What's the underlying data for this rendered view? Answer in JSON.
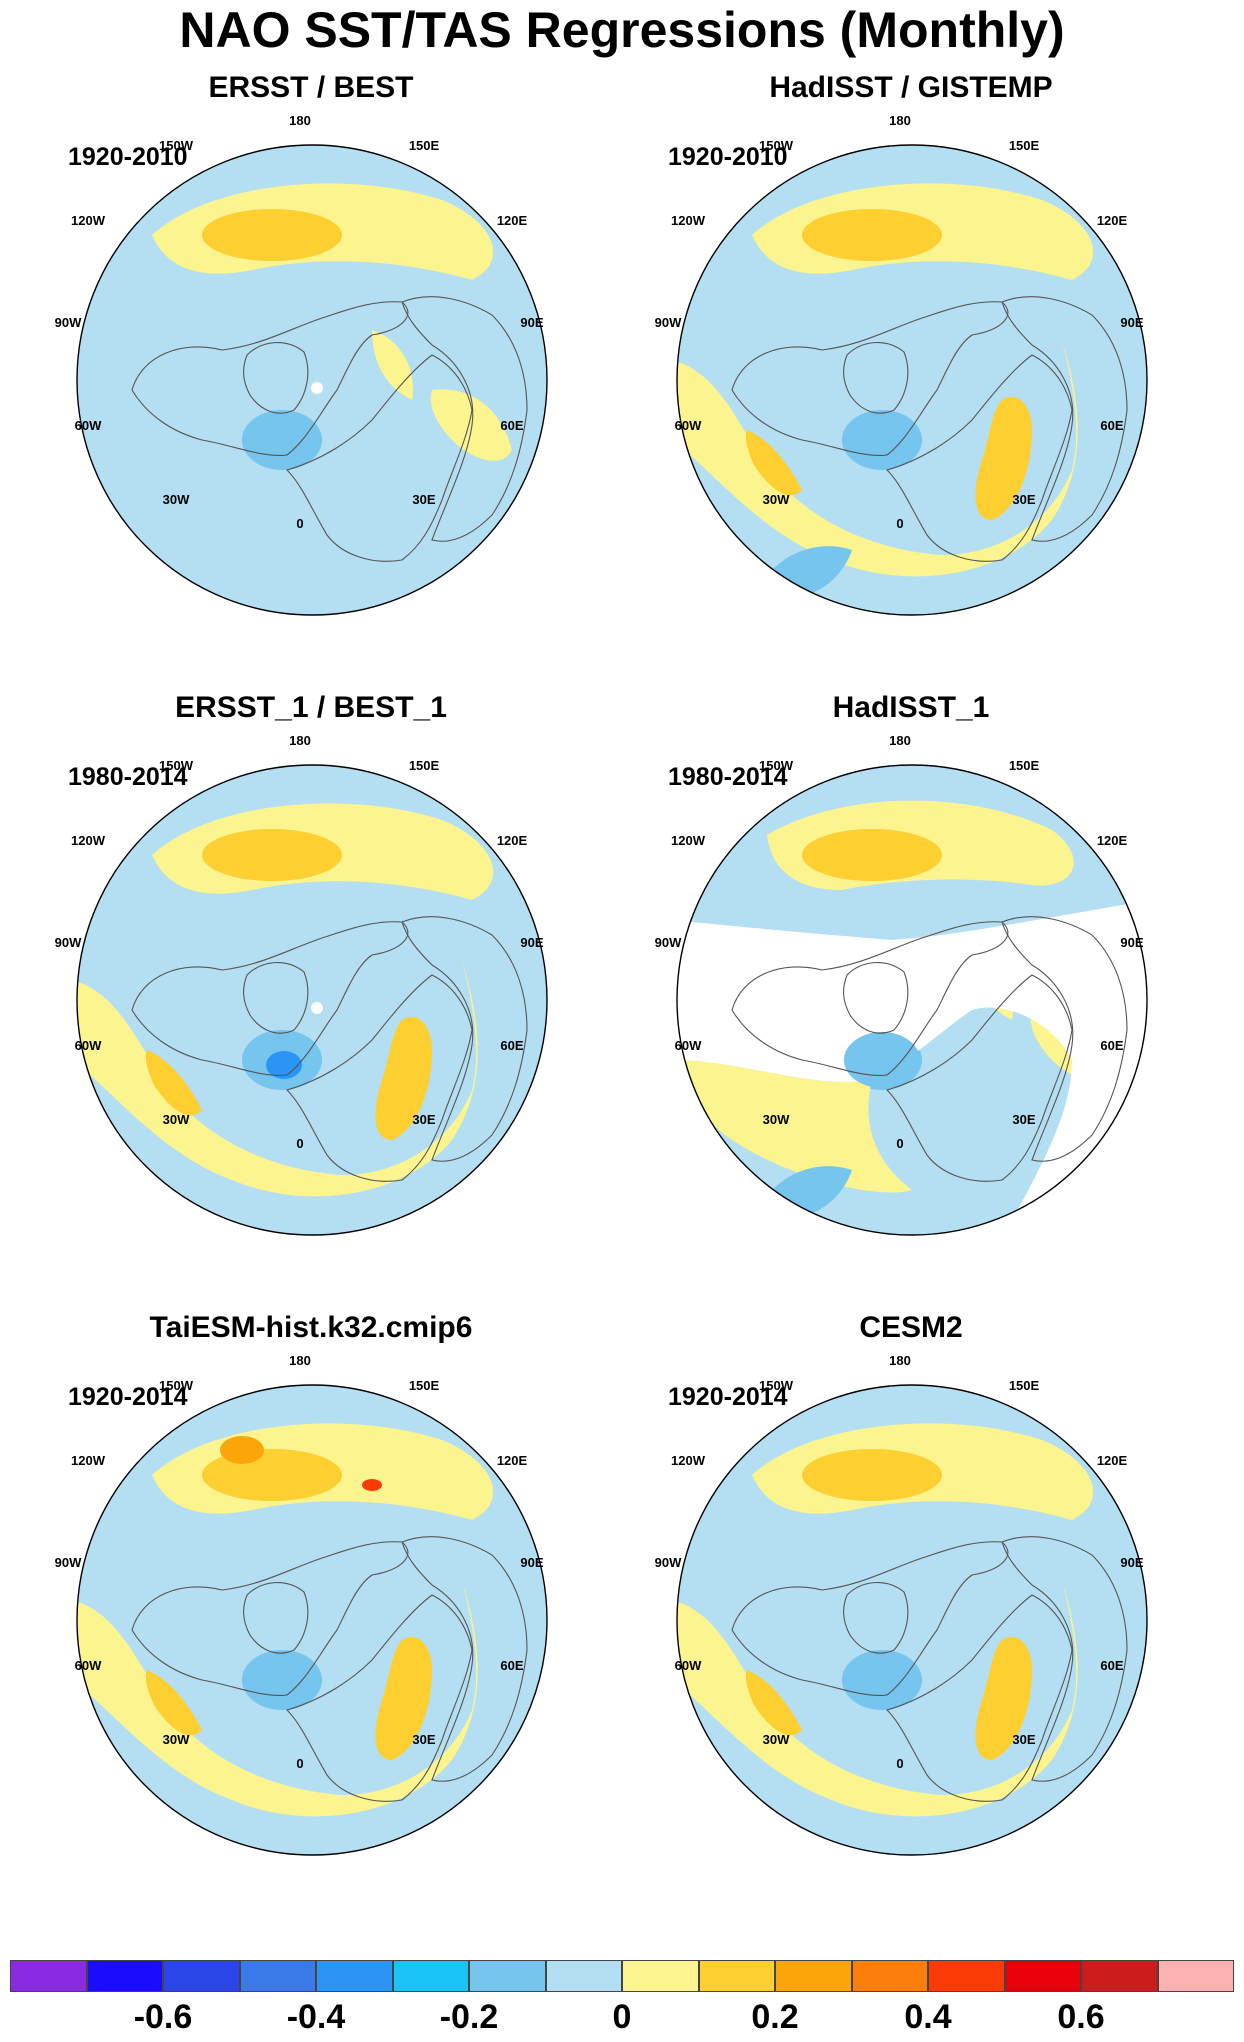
{
  "title": "NAO SST/TAS Regressions (Monthly)",
  "longitude_labels": {
    "top": "180",
    "top_right": "150E",
    "upper_right": "120E",
    "right": "90E",
    "lower_right": "60E",
    "bottom_right": "30E",
    "bottom": "0",
    "bottom_left": "30W",
    "lower_left": "60W",
    "left": "90W",
    "upper_left": "120W",
    "top_left": "150W"
  },
  "panels": [
    {
      "id": "ersst-best",
      "title": "ERSST / BEST",
      "period": "1920-2010"
    },
    {
      "id": "hadisst-gistemp",
      "title": "HadISST / GISTEMP",
      "period": "1920-2010"
    },
    {
      "id": "ersst1-best1",
      "title": "ERSST_1 / BEST_1",
      "period": "1980-2014"
    },
    {
      "id": "hadisst1",
      "title": "HadISST_1",
      "period": "1980-2014"
    },
    {
      "id": "taiesm",
      "title": "TaiESM-hist.k32.cmip6",
      "period": "1920-2014"
    },
    {
      "id": "cesm2",
      "title": "CESM2",
      "period": "1920-2014"
    }
  ],
  "colorbar": {
    "colors": [
      "#8a2be2",
      "#1a0dff",
      "#2a45e8",
      "#3a7ae8",
      "#2b95f5",
      "#18c3f7",
      "#76c5ef",
      "#b4def2",
      "#fbf48f",
      "#fdcf30",
      "#fca60c",
      "#fb7d0c",
      "#fb3a05",
      "#e8000b",
      "#cc1c1c",
      "#fdb2b2"
    ],
    "labels": [
      "-0.6",
      "-0.4",
      "-0.2",
      "0",
      "0.2",
      "0.4",
      "0.6"
    ]
  }
}
